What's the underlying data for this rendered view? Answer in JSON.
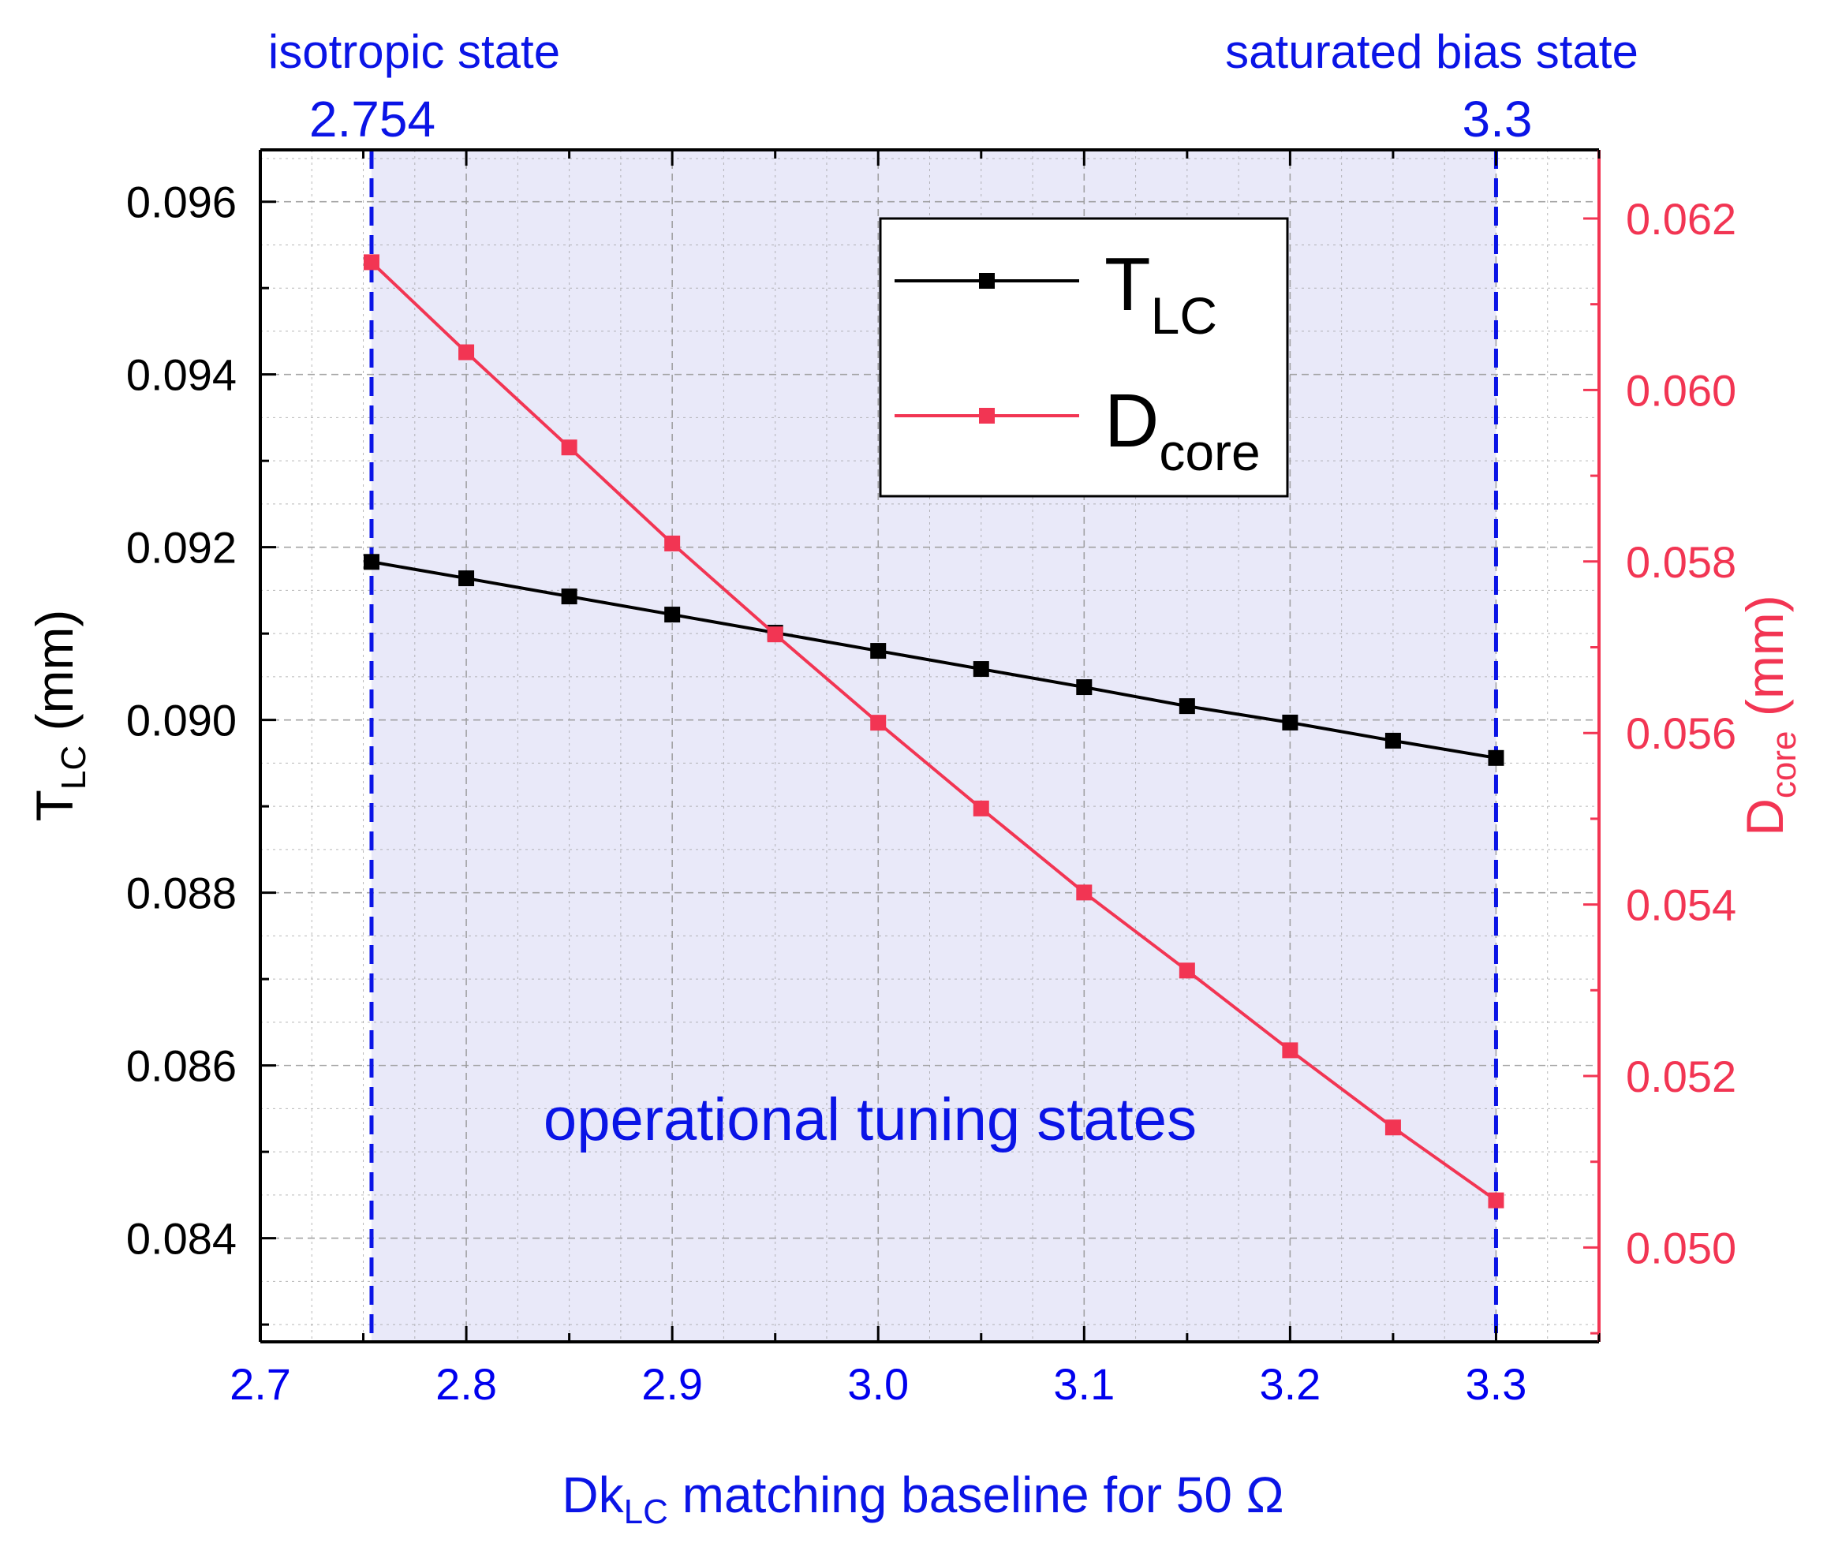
{
  "chart_data": {
    "type": "line",
    "x": [
      2.754,
      2.8,
      2.85,
      2.9,
      2.95,
      3.0,
      3.05,
      3.1,
      3.15,
      3.2,
      3.25,
      3.3
    ],
    "series": [
      {
        "name": "T_LC",
        "axis": "left",
        "color": "#000000",
        "values": [
          0.09183,
          0.09164,
          0.09143,
          0.09122,
          0.09101,
          0.0908,
          0.09059,
          0.09038,
          0.09016,
          0.08997,
          0.08976,
          0.08956
        ]
      },
      {
        "name": "D_core",
        "axis": "right",
        "color": "#f23553",
        "values": [
          0.06149,
          0.06044,
          0.05933,
          0.05821,
          0.05715,
          0.05612,
          0.05512,
          0.05414,
          0.05323,
          0.0523,
          0.0514,
          0.05055
        ]
      }
    ],
    "xlim": [
      2.7,
      3.35
    ],
    "ylim_left": [
      0.0828,
      0.0966
    ],
    "ylim_right": [
      0.0489,
      0.0628
    ],
    "xticks": [
      "2.7",
      "2.8",
      "2.9",
      "3.0",
      "3.1",
      "3.2",
      "3.3"
    ],
    "xtick_values": [
      2.7,
      2.8,
      2.9,
      3.0,
      3.1,
      3.2,
      3.3
    ],
    "yticks_left": [
      "0.084",
      "0.086",
      "0.088",
      "0.090",
      "0.092",
      "0.094",
      "0.096"
    ],
    "ytick_values_left": [
      0.084,
      0.086,
      0.088,
      0.09,
      0.092,
      0.094,
      0.096
    ],
    "yticks_right": [
      "0.050",
      "0.052",
      "0.054",
      "0.056",
      "0.058",
      "0.060",
      "0.062"
    ],
    "ytick_values_right": [
      0.05,
      0.052,
      0.054,
      0.056,
      0.058,
      0.06,
      0.062
    ],
    "xlabel": {
      "main": "Dk",
      "sub": "LC",
      "rest": " matching baseline for 50 Ω"
    },
    "ylabel_left": {
      "main": "T",
      "sub": "LC",
      "rest": " (mm)"
    },
    "ylabel_right": {
      "main": "D",
      "sub": "core",
      "rest": " (mm)"
    },
    "legend": [
      {
        "main": "T",
        "sub": "LC"
      },
      {
        "main": "D",
        "sub": "core"
      }
    ],
    "legend_position": "top-right",
    "grid": true,
    "shaded_region": {
      "x_start": 2.754,
      "x_end": 3.3,
      "label": "operational tuning states"
    },
    "markers": [
      {
        "title": "isotropic state",
        "value_label": "2.754",
        "x": 2.754
      },
      {
        "title": "saturated bias state",
        "value_label": "3.3",
        "x": 3.3
      }
    ],
    "colors": {
      "left_axis": "#000000",
      "right_axis": "#f23553",
      "x_axis": "#0000ee",
      "annotation": "#0a14e6",
      "shade": "#e9e9f9",
      "grid": "#9a9a9a"
    }
  }
}
